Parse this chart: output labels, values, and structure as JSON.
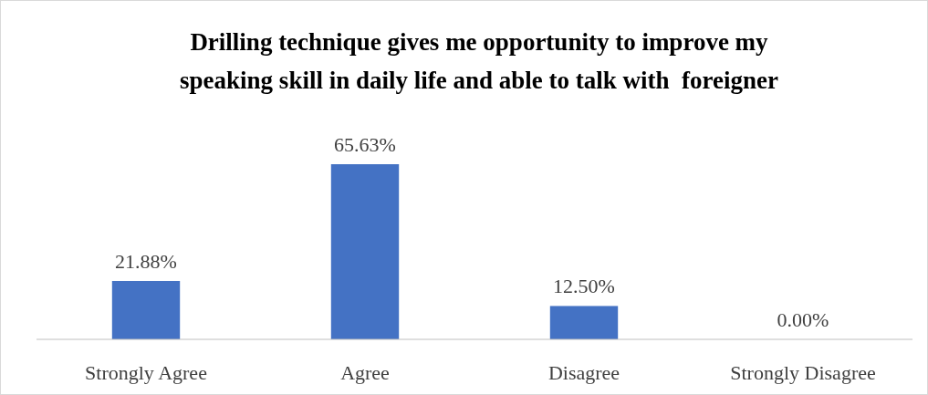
{
  "chart_data": {
    "type": "bar",
    "title": "Drilling technique gives me opportunity to improve my\nspeaking skill in daily life and able to talk with  foreigner",
    "categories": [
      "Strongly Agree",
      "Agree",
      "Disagree",
      "Strongly Disagree"
    ],
    "values": [
      21.88,
      65.63,
      12.5,
      0
    ],
    "value_labels": [
      "21.88%",
      "65.63%",
      "12.50%",
      "0.00%"
    ],
    "color": "#4472c4",
    "ylim": [
      0,
      65.63
    ]
  }
}
